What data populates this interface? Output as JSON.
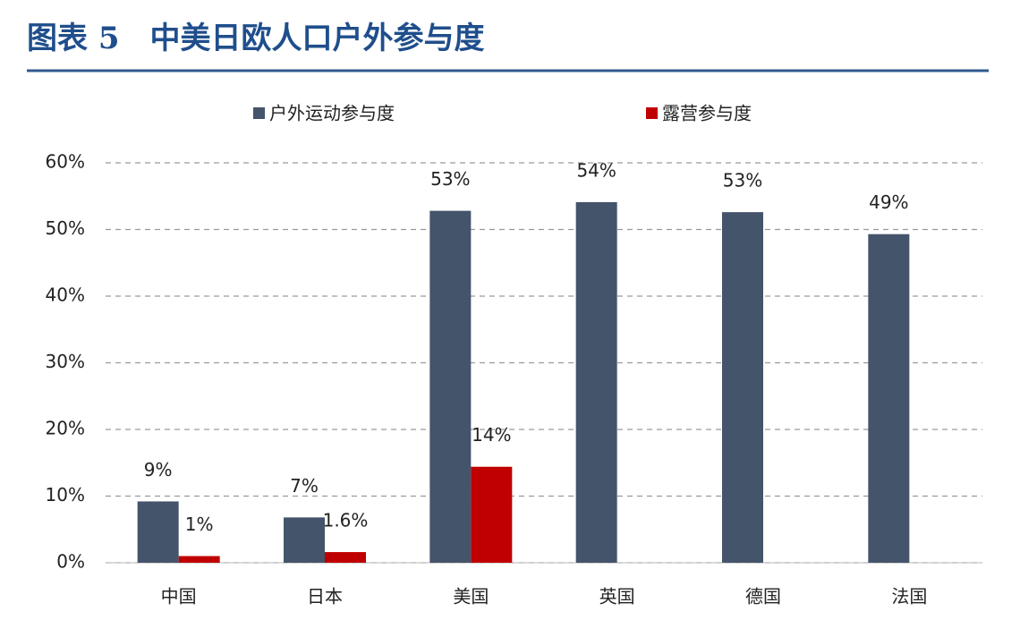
{
  "chart_data": {
    "type": "bar",
    "title": "图表 5　中美日欧人口户外参与度",
    "categories": [
      "中国",
      "日本",
      "美国",
      "英国",
      "德国",
      "法国"
    ],
    "series": [
      {
        "name": "户外运动参与度",
        "color": "#44546a",
        "values": [
          9.2,
          6.8,
          52.8,
          54.1,
          52.6,
          49.3
        ],
        "value_labels": [
          "9%",
          "7%",
          "53%",
          "54%",
          "53%",
          "49%"
        ]
      },
      {
        "name": "露营参与度",
        "color": "#c00000",
        "values": [
          1,
          1.6,
          14.4,
          null,
          null,
          null
        ],
        "value_labels": [
          "1%",
          "1.6%",
          "14%",
          null,
          null,
          null
        ]
      }
    ],
    "ylim": [
      0,
      60
    ],
    "yticks": [
      {
        "value": 0,
        "label": "0%"
      },
      {
        "value": 10,
        "label": "10%"
      },
      {
        "value": 20,
        "label": "20%"
      },
      {
        "value": 30,
        "label": "30%"
      },
      {
        "value": 40,
        "label": "40%"
      },
      {
        "value": 50,
        "label": "50%"
      },
      {
        "value": 60,
        "label": "60%"
      }
    ],
    "grid": true,
    "legend": "top"
  }
}
